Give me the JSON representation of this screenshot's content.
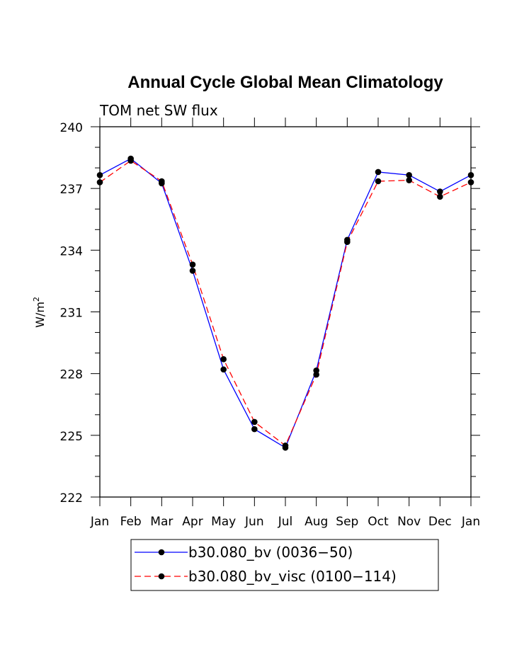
{
  "chart_data": {
    "type": "line",
    "title": "Annual Cycle Global Mean Climatology",
    "subtitle": "TOM net SW flux",
    "xlabel": "",
    "ylabel": "W/m",
    "ylabel_superscript": "2",
    "ylim": [
      222,
      240
    ],
    "yticks": [
      "222",
      "225",
      "228",
      "231",
      "234",
      "237",
      "240"
    ],
    "categories": [
      "Jan",
      "Feb",
      "Mar",
      "Apr",
      "May",
      "Jun",
      "Jul",
      "Aug",
      "Sep",
      "Oct",
      "Nov",
      "Dec",
      "Jan"
    ],
    "series": [
      {
        "name": "b30.080_bv (0036−50)",
        "color": "#0000ff",
        "dash": "solid",
        "values": [
          237.65,
          238.45,
          237.25,
          233.0,
          228.2,
          225.3,
          224.4,
          228.15,
          234.5,
          237.8,
          237.65,
          236.85,
          237.65
        ]
      },
      {
        "name": "b30.080_bv_visc (0100−114)",
        "color": "#ff0000",
        "dash": "dashed",
        "values": [
          237.3,
          238.35,
          237.35,
          233.3,
          228.7,
          225.65,
          224.5,
          227.95,
          234.4,
          237.35,
          237.4,
          236.6,
          237.3
        ]
      }
    ],
    "marker_color": "#000000"
  }
}
